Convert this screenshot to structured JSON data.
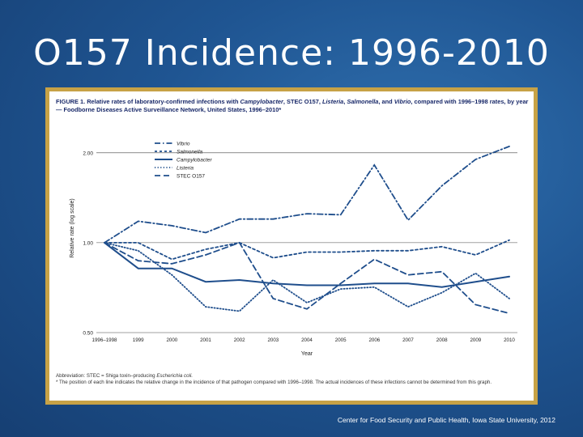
{
  "slide": {
    "title": "O157 Incidence: 1996-2010",
    "credit": "Center for Food Security and Public Health, Iowa State University, 2012"
  },
  "figure": {
    "caption_part1": "FIGURE 1. Relative rates of laboratory-confirmed infections with ",
    "caption_campy": "Campylobacter",
    "caption_part2": ", STEC O157, ",
    "caption_listeria": "Listeria",
    "caption_part3": ", ",
    "caption_salmonella": "Salmonella",
    "caption_part4": ", and ",
    "caption_vibrio": "Vibrio",
    "caption_part5": ", compared with 1996–1998 rates, by year — Foodborne Diseases Active Surveillance Network, United States, 1996–2010*",
    "abbrev_prefix": "Abbreviation: STEC = Shiga toxin–producing ",
    "abbrev_organism": "Escherichia coli.",
    "footnote": "* The position of each line indicates the relative change in the incidence of that pathogen compared with 1996–1998. The actual incidences of these infections cannot be determined from this graph."
  },
  "chart_data": {
    "type": "line",
    "title": "",
    "xlabel": "Year",
    "ylabel": "Relative rate (log scale)",
    "x": [
      "1996–1998",
      "1999",
      "2000",
      "2001",
      "2002",
      "2003",
      "2004",
      "2005",
      "2006",
      "2007",
      "2008",
      "2009",
      "2010"
    ],
    "yscale": "log",
    "ylim": [
      0.5,
      2.5
    ],
    "yticks": [
      0.5,
      1.0,
      2.0
    ],
    "ytick_labels": [
      "0.50",
      "1.00",
      "2.00"
    ],
    "grid": "horizontal at ticks",
    "legend_position": "top-left",
    "series": [
      {
        "name": "Vibrio",
        "style": "dashdot",
        "color": "#1f4e8c",
        "values": [
          1.0,
          1.18,
          1.14,
          1.08,
          1.2,
          1.2,
          1.25,
          1.24,
          1.82,
          1.19,
          1.55,
          1.9,
          2.1
        ]
      },
      {
        "name": "Salmonella",
        "style": "dash",
        "color": "#1f4e8c",
        "values": [
          1.0,
          1.0,
          0.88,
          0.95,
          1.0,
          0.89,
          0.93,
          0.93,
          0.94,
          0.94,
          0.97,
          0.91,
          1.02
        ]
      },
      {
        "name": "Campylobacter",
        "style": "solid",
        "color": "#1f4e8c",
        "values": [
          1.0,
          0.82,
          0.82,
          0.74,
          0.75,
          0.73,
          0.72,
          0.72,
          0.73,
          0.73,
          0.71,
          0.74,
          0.77
        ]
      },
      {
        "name": "Listeria",
        "style": "dot",
        "color": "#1f4e8c",
        "values": [
          1.0,
          0.94,
          0.78,
          0.61,
          0.59,
          0.75,
          0.63,
          0.7,
          0.71,
          0.61,
          0.68,
          0.79,
          0.65
        ]
      },
      {
        "name": "STEC O157",
        "style": "longdash",
        "color": "#1f4e8c",
        "values": [
          1.0,
          0.87,
          0.85,
          0.91,
          1.0,
          0.65,
          0.6,
          0.73,
          0.88,
          0.78,
          0.8,
          0.62,
          0.58
        ]
      }
    ]
  }
}
